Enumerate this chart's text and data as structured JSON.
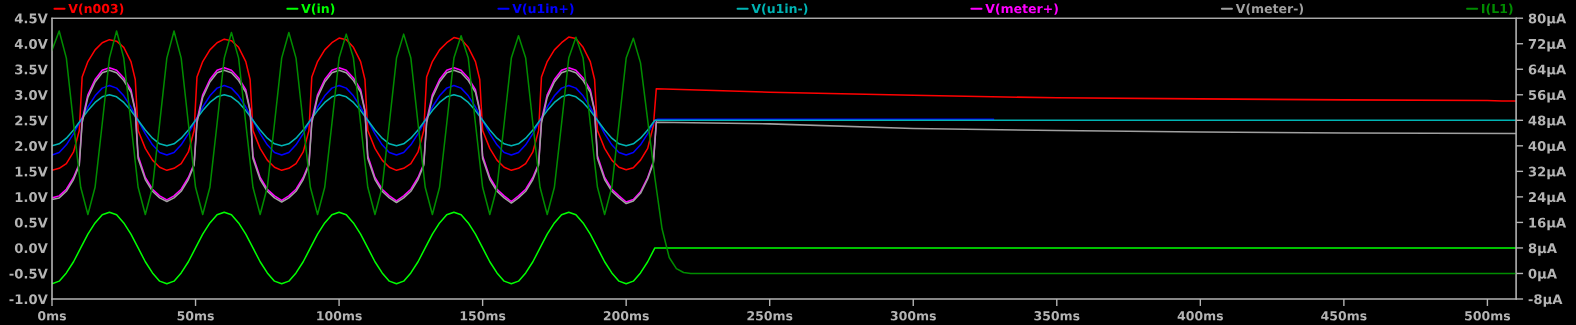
{
  "chart_data": {
    "type": "line",
    "legend": "top",
    "xlim": [
      0,
      510
    ],
    "xticks": [
      {
        "value": 0,
        "label": "0ms"
      },
      {
        "value": 50,
        "label": "50ms"
      },
      {
        "value": 100,
        "label": "100ms"
      },
      {
        "value": 150,
        "label": "150ms"
      },
      {
        "value": 200,
        "label": "200ms"
      },
      {
        "value": 250,
        "label": "250ms"
      },
      {
        "value": 300,
        "label": "300ms"
      },
      {
        "value": 350,
        "label": "350ms"
      },
      {
        "value": 400,
        "label": "400ms"
      },
      {
        "value": 450,
        "label": "450ms"
      },
      {
        "value": 500,
        "label": "500ms"
      }
    ],
    "ylim": [
      -1.0,
      4.5
    ],
    "yticks": [
      {
        "value": -1.0,
        "label": "-1.0V"
      },
      {
        "value": -0.5,
        "label": "-0.5V"
      },
      {
        "value": 0,
        "label": "0.0V"
      },
      {
        "value": 0.5,
        "label": "0.5V"
      },
      {
        "value": 1.0,
        "label": "1.0V"
      },
      {
        "value": 1.5,
        "label": "1.5V"
      },
      {
        "value": 2.0,
        "label": "2.0V"
      },
      {
        "value": 2.5,
        "label": "2.5V"
      },
      {
        "value": 3.0,
        "label": "3.0V"
      },
      {
        "value": 3.5,
        "label": "3.5V"
      },
      {
        "value": 4.0,
        "label": "4.0V"
      },
      {
        "value": 4.5,
        "label": "4.5V"
      }
    ],
    "y2lim": [
      -8,
      80
    ],
    "y2ticks": [
      {
        "value": -8,
        "label": "-8µA"
      },
      {
        "value": 0,
        "label": "0µA"
      },
      {
        "value": 8,
        "label": "8µA"
      },
      {
        "value": 16,
        "label": "16µA"
      },
      {
        "value": 24,
        "label": "24µA"
      },
      {
        "value": 32,
        "label": "32µA"
      },
      {
        "value": 40,
        "label": "40µA"
      },
      {
        "value": 48,
        "label": "48µA"
      },
      {
        "value": 56,
        "label": "56µA"
      },
      {
        "value": 64,
        "label": "64µA"
      },
      {
        "value": 72,
        "label": "72µA"
      },
      {
        "value": 80,
        "label": "80µA"
      }
    ],
    "series": [
      {
        "name": "V(n003)",
        "color": "#ff0000",
        "x": [
          0,
          2.5,
          5,
          7.5,
          9.5,
          10.5,
          12.5,
          15,
          17.5,
          20,
          22.5,
          25,
          27.5,
          29,
          30,
          32.5,
          35,
          37.5,
          40,
          42.5,
          45,
          47.5,
          49.5,
          50.5,
          52.5,
          55,
          57.5,
          60,
          62.5,
          65,
          67.5,
          69,
          70,
          72.5,
          75,
          77.5,
          80,
          82.5,
          85,
          87.5,
          89.5,
          90.5,
          92.5,
          95,
          97.5,
          100,
          102.5,
          105,
          107.5,
          109,
          110,
          112.5,
          115,
          117.5,
          120,
          122.5,
          125,
          127.5,
          129.5,
          130.5,
          132.5,
          135,
          137.5,
          140,
          142.5,
          145,
          147.5,
          149,
          150,
          152.5,
          155,
          157.5,
          160,
          162.5,
          165,
          167.5,
          169.5,
          170.5,
          172.5,
          175,
          177.5,
          180,
          182.5,
          185,
          187.5,
          189,
          190,
          192.5,
          195,
          197.5,
          200,
          202.5,
          205,
          207.5,
          209.5,
          210.5,
          250,
          300,
          350,
          400,
          450,
          500,
          505,
          510
        ],
        "values": [
          1.52,
          1.56,
          1.65,
          1.88,
          2.3,
          3.35,
          3.65,
          3.88,
          4.02,
          4.08,
          4.05,
          3.93,
          3.65,
          3.3,
          2.3,
          1.95,
          1.72,
          1.58,
          1.52,
          1.56,
          1.65,
          1.88,
          2.3,
          3.35,
          3.65,
          3.88,
          4.02,
          4.09,
          4.06,
          3.93,
          3.65,
          3.3,
          2.3,
          1.95,
          1.72,
          1.58,
          1.52,
          1.56,
          1.65,
          1.88,
          2.3,
          3.35,
          3.65,
          3.88,
          4.02,
          4.11,
          4.08,
          3.93,
          3.65,
          3.3,
          2.3,
          1.95,
          1.72,
          1.58,
          1.52,
          1.56,
          1.65,
          1.88,
          2.3,
          3.35,
          3.65,
          3.88,
          4.02,
          4.12,
          4.09,
          3.93,
          3.65,
          3.3,
          2.3,
          1.95,
          1.72,
          1.58,
          1.52,
          1.56,
          1.65,
          1.88,
          2.3,
          3.35,
          3.65,
          3.88,
          4.02,
          4.13,
          4.1,
          3.93,
          3.65,
          3.3,
          2.3,
          1.95,
          1.72,
          1.58,
          1.53,
          1.57,
          1.72,
          1.95,
          2.4,
          3.12,
          3.05,
          2.99,
          2.94,
          2.92,
          2.9,
          2.89,
          2.88,
          2.88
        ]
      },
      {
        "name": "V(in)",
        "color": "#00ff00",
        "x": [
          0,
          2.5,
          5,
          7.5,
          10,
          12.5,
          15,
          17.5,
          20,
          22.5,
          25,
          27.5,
          30,
          32.5,
          35,
          37.5,
          40,
          42.5,
          45,
          47.5,
          50,
          52.5,
          55,
          57.5,
          60,
          62.5,
          65,
          67.5,
          70,
          72.5,
          75,
          77.5,
          80,
          82.5,
          85,
          87.5,
          90,
          92.5,
          95,
          97.5,
          100,
          102.5,
          105,
          107.5,
          110,
          112.5,
          115,
          117.5,
          120,
          122.5,
          125,
          127.5,
          130,
          132.5,
          135,
          137.5,
          140,
          142.5,
          145,
          147.5,
          150,
          152.5,
          155,
          157.5,
          160,
          162.5,
          165,
          167.5,
          170,
          172.5,
          175,
          177.5,
          180,
          182.5,
          185,
          187.5,
          190,
          192.5,
          195,
          197.5,
          200,
          202.5,
          205,
          207.5,
          210,
          510
        ],
        "values": [
          -0.7,
          -0.65,
          -0.49,
          -0.27,
          0,
          0.27,
          0.49,
          0.65,
          0.7,
          0.65,
          0.49,
          0.27,
          0,
          -0.27,
          -0.49,
          -0.65,
          -0.7,
          -0.65,
          -0.49,
          -0.27,
          0,
          0.27,
          0.49,
          0.65,
          0.7,
          0.65,
          0.49,
          0.27,
          0,
          -0.27,
          -0.49,
          -0.65,
          -0.7,
          -0.65,
          -0.49,
          -0.27,
          0,
          0.27,
          0.49,
          0.65,
          0.7,
          0.65,
          0.49,
          0.27,
          0,
          -0.27,
          -0.49,
          -0.65,
          -0.7,
          -0.65,
          -0.49,
          -0.27,
          0,
          0.27,
          0.49,
          0.65,
          0.7,
          0.65,
          0.49,
          0.27,
          0,
          -0.27,
          -0.49,
          -0.65,
          -0.7,
          -0.65,
          -0.49,
          -0.27,
          0,
          0.27,
          0.49,
          0.65,
          0.7,
          0.65,
          0.49,
          0.27,
          0,
          -0.27,
          -0.49,
          -0.65,
          -0.7,
          -0.65,
          -0.49,
          -0.27,
          0,
          0
        ]
      },
      {
        "name": "V(u1in+)",
        "color": "#0000ff",
        "x": [
          0,
          2.5,
          5,
          7.5,
          10,
          12.5,
          15,
          17.5,
          20,
          22.5,
          25,
          27.5,
          30,
          32.5,
          35,
          37.5,
          40,
          42.5,
          45,
          47.5,
          50,
          52.5,
          55,
          57.5,
          60,
          62.5,
          65,
          67.5,
          70,
          72.5,
          75,
          77.5,
          80,
          82.5,
          85,
          87.5,
          90,
          92.5,
          95,
          97.5,
          100,
          102.5,
          105,
          107.5,
          110,
          112.5,
          115,
          117.5,
          120,
          122.5,
          125,
          127.5,
          130,
          132.5,
          135,
          137.5,
          140,
          142.5,
          145,
          147.5,
          150,
          152.5,
          155,
          157.5,
          160,
          162.5,
          165,
          167.5,
          170,
          172.5,
          175,
          177.5,
          180,
          182.5,
          185,
          187.5,
          190,
          192.5,
          195,
          197.5,
          200,
          202.5,
          205,
          207.5,
          210,
          211,
          328
        ],
        "values": [
          1.82,
          1.87,
          2.02,
          2.24,
          2.5,
          2.76,
          2.98,
          3.13,
          3.18,
          3.13,
          2.98,
          2.76,
          2.5,
          2.24,
          2.02,
          1.87,
          1.82,
          1.87,
          2.02,
          2.24,
          2.5,
          2.76,
          2.98,
          3.13,
          3.18,
          3.13,
          2.98,
          2.76,
          2.5,
          2.24,
          2.02,
          1.87,
          1.82,
          1.87,
          2.02,
          2.24,
          2.5,
          2.76,
          2.98,
          3.13,
          3.18,
          3.13,
          2.98,
          2.76,
          2.5,
          2.24,
          2.02,
          1.87,
          1.82,
          1.87,
          2.02,
          2.24,
          2.5,
          2.76,
          2.98,
          3.13,
          3.18,
          3.13,
          2.98,
          2.76,
          2.5,
          2.24,
          2.02,
          1.87,
          1.82,
          1.87,
          2.02,
          2.24,
          2.5,
          2.76,
          2.98,
          3.13,
          3.18,
          3.13,
          2.98,
          2.76,
          2.5,
          2.24,
          2.02,
          1.87,
          1.82,
          1.87,
          2.02,
          2.24,
          2.5,
          2.52,
          2.52
        ]
      },
      {
        "name": "V(u1in-)",
        "color": "#00b4b4",
        "x": [
          0,
          2.5,
          5,
          7.5,
          10,
          12.5,
          15,
          17.5,
          20,
          22.5,
          25,
          27.5,
          30,
          32.5,
          35,
          37.5,
          40,
          42.5,
          45,
          47.5,
          50,
          52.5,
          55,
          57.5,
          60,
          62.5,
          65,
          67.5,
          70,
          72.5,
          75,
          77.5,
          80,
          82.5,
          85,
          87.5,
          90,
          92.5,
          95,
          97.5,
          100,
          102.5,
          105,
          107.5,
          110,
          112.5,
          115,
          117.5,
          120,
          122.5,
          125,
          127.5,
          130,
          132.5,
          135,
          137.5,
          140,
          142.5,
          145,
          147.5,
          150,
          152.5,
          155,
          157.5,
          160,
          162.5,
          165,
          167.5,
          170,
          172.5,
          175,
          177.5,
          180,
          182.5,
          185,
          187.5,
          190,
          192.5,
          195,
          197.5,
          200,
          202.5,
          205,
          207.5,
          210,
          510
        ],
        "values": [
          2.0,
          2.04,
          2.15,
          2.31,
          2.5,
          2.69,
          2.85,
          2.96,
          3.0,
          2.96,
          2.85,
          2.69,
          2.5,
          2.31,
          2.15,
          2.04,
          2.0,
          2.04,
          2.15,
          2.31,
          2.5,
          2.69,
          2.85,
          2.96,
          3.0,
          2.96,
          2.85,
          2.69,
          2.5,
          2.31,
          2.15,
          2.04,
          2.0,
          2.04,
          2.15,
          2.31,
          2.5,
          2.69,
          2.85,
          2.96,
          3.0,
          2.96,
          2.85,
          2.69,
          2.5,
          2.31,
          2.15,
          2.04,
          2.0,
          2.04,
          2.15,
          2.31,
          2.5,
          2.69,
          2.85,
          2.96,
          3.0,
          2.96,
          2.85,
          2.69,
          2.5,
          2.31,
          2.15,
          2.04,
          2.0,
          2.04,
          2.15,
          2.31,
          2.5,
          2.69,
          2.85,
          2.96,
          3.0,
          2.96,
          2.85,
          2.69,
          2.5,
          2.31,
          2.15,
          2.04,
          2.0,
          2.04,
          2.15,
          2.31,
          2.5,
          2.5
        ]
      },
      {
        "name": "V(meter+)",
        "color": "#ff00ff",
        "x": [
          0,
          2.5,
          5,
          7.5,
          9.5,
          10.5,
          12.5,
          15,
          17.5,
          20,
          22.5,
          25,
          27.5,
          29,
          30,
          32.5,
          35,
          37.5,
          40,
          42.5,
          45,
          47.5,
          49.5,
          50.5,
          52.5,
          55,
          57.5,
          60,
          62.5,
          65,
          67.5,
          69,
          70,
          72.5,
          75,
          77.5,
          80,
          82.5,
          85,
          87.5,
          89.5,
          90.5,
          92.5,
          95,
          97.5,
          100,
          102.5,
          105,
          107.5,
          109,
          110,
          112.5,
          115,
          117.5,
          120,
          122.5,
          125,
          127.5,
          129.5,
          130.5,
          132.5,
          135,
          137.5,
          140,
          142.5,
          145,
          147.5,
          149,
          150,
          152.5,
          155,
          157.5,
          160,
          162.5,
          165,
          167.5,
          169.5,
          170.5,
          172.5,
          175,
          177.5,
          180,
          182.5,
          185,
          187.5,
          189,
          190,
          192.5,
          195,
          197.5,
          200,
          202.5,
          205,
          207.5,
          209.5,
          210.5
        ],
        "values": [
          0.98,
          1.02,
          1.15,
          1.38,
          1.65,
          2.5,
          3.0,
          3.3,
          3.48,
          3.53,
          3.48,
          3.33,
          3.1,
          2.7,
          1.8,
          1.38,
          1.15,
          1.02,
          0.94,
          1.02,
          1.15,
          1.38,
          1.65,
          2.5,
          3.0,
          3.3,
          3.48,
          3.53,
          3.48,
          3.33,
          3.1,
          2.7,
          1.8,
          1.38,
          1.15,
          1.02,
          0.93,
          1.02,
          1.15,
          1.38,
          1.65,
          2.5,
          3.0,
          3.3,
          3.48,
          3.53,
          3.48,
          3.33,
          3.1,
          2.7,
          1.8,
          1.38,
          1.15,
          1.02,
          0.92,
          1.02,
          1.15,
          1.38,
          1.65,
          2.5,
          3.0,
          3.3,
          3.48,
          3.53,
          3.48,
          3.33,
          3.1,
          2.7,
          1.8,
          1.38,
          1.15,
          1.02,
          0.91,
          1.02,
          1.15,
          1.38,
          1.65,
          2.5,
          3.0,
          3.3,
          3.48,
          3.53,
          3.48,
          3.33,
          3.1,
          2.7,
          1.8,
          1.38,
          1.15,
          1.02,
          0.9,
          0.95,
          1.1,
          1.38,
          1.7,
          2.47
        ]
      },
      {
        "name": "V(meter-)",
        "color": "#a0a0a0",
        "x": [
          0,
          2.5,
          5,
          7.5,
          9.5,
          10.5,
          12.5,
          15,
          17.5,
          20,
          22.5,
          25,
          27.5,
          29,
          30,
          32.5,
          35,
          37.5,
          40,
          42.5,
          45,
          47.5,
          49.5,
          50.5,
          52.5,
          55,
          57.5,
          60,
          62.5,
          65,
          67.5,
          69,
          70,
          72.5,
          75,
          77.5,
          80,
          82.5,
          85,
          87.5,
          89.5,
          90.5,
          92.5,
          95,
          97.5,
          100,
          102.5,
          105,
          107.5,
          109,
          110,
          112.5,
          115,
          117.5,
          120,
          122.5,
          125,
          127.5,
          129.5,
          130.5,
          132.5,
          135,
          137.5,
          140,
          142.5,
          145,
          147.5,
          149,
          150,
          152.5,
          155,
          157.5,
          160,
          162.5,
          165,
          167.5,
          169.5,
          170.5,
          172.5,
          175,
          177.5,
          180,
          182.5,
          185,
          187.5,
          189,
          190,
          192.5,
          195,
          197.5,
          200,
          202.5,
          205,
          207.5,
          209.5,
          210.5,
          250,
          300,
          350,
          400,
          450,
          510
        ],
        "values": [
          0.95,
          0.98,
          1.11,
          1.34,
          1.62,
          2.45,
          2.95,
          3.25,
          3.43,
          3.48,
          3.43,
          3.28,
          3.05,
          2.68,
          1.75,
          1.34,
          1.11,
          0.98,
          0.91,
          0.98,
          1.11,
          1.34,
          1.62,
          2.45,
          2.95,
          3.25,
          3.43,
          3.48,
          3.43,
          3.28,
          3.05,
          2.68,
          1.75,
          1.34,
          1.11,
          0.98,
          0.9,
          0.98,
          1.11,
          1.34,
          1.62,
          2.45,
          2.95,
          3.25,
          3.43,
          3.48,
          3.43,
          3.28,
          3.05,
          2.68,
          1.75,
          1.34,
          1.11,
          0.98,
          0.89,
          0.98,
          1.11,
          1.34,
          1.62,
          2.45,
          2.95,
          3.25,
          3.43,
          3.48,
          3.43,
          3.28,
          3.05,
          2.68,
          1.75,
          1.34,
          1.11,
          0.98,
          0.88,
          0.98,
          1.11,
          1.34,
          1.62,
          2.45,
          2.95,
          3.25,
          3.43,
          3.48,
          3.43,
          3.28,
          3.05,
          2.68,
          1.75,
          1.34,
          1.11,
          0.98,
          0.87,
          0.92,
          1.07,
          1.35,
          1.67,
          2.46,
          2.43,
          2.34,
          2.3,
          2.27,
          2.25,
          2.24
        ]
      },
      {
        "name": "I(L1)",
        "color": "#008c00",
        "axis": "y2",
        "x": [
          0,
          2.5,
          5,
          7.5,
          10,
          12.5,
          15,
          17.5,
          20,
          22.5,
          25,
          27.5,
          30,
          32.5,
          35,
          37.5,
          40,
          42.5,
          45,
          47.5,
          50,
          52.5,
          55,
          57.5,
          60,
          62.5,
          65,
          67.5,
          70,
          72.5,
          75,
          77.5,
          80,
          82.5,
          85,
          87.5,
          90,
          92.5,
          95,
          97.5,
          100,
          102.5,
          105,
          107.5,
          110,
          112.5,
          115,
          117.5,
          120,
          122.5,
          125,
          127.5,
          130,
          132.5,
          135,
          137.5,
          140,
          142.5,
          145,
          147.5,
          150,
          152.5,
          155,
          157.5,
          160,
          162.5,
          165,
          167.5,
          170,
          172.5,
          175,
          177.5,
          180,
          182.5,
          185,
          187.5,
          190,
          192.5,
          195,
          197.5,
          200,
          202.5,
          205,
          207.5,
          210,
          212.5,
          215,
          217.5,
          220,
          222.5,
          225,
          510
        ],
        "values": [
          70,
          76,
          67.5,
          47,
          27,
          18.5,
          27,
          47,
          67.5,
          76,
          67.5,
          47,
          27,
          18.5,
          27,
          47,
          67.5,
          76,
          67.5,
          47,
          27,
          18.5,
          27,
          47,
          67.5,
          75.5,
          67.5,
          47,
          27,
          18.5,
          27,
          47,
          67.5,
          75.5,
          67.5,
          47,
          27,
          18.5,
          27,
          47,
          67.5,
          75,
          67.5,
          47,
          27,
          18.5,
          27,
          47,
          67.5,
          75,
          67.5,
          47,
          27,
          18.5,
          27,
          47,
          67.5,
          74.5,
          67.5,
          47,
          27,
          18.5,
          27,
          47,
          67.5,
          74.5,
          67.5,
          47,
          27,
          18.5,
          27,
          47,
          67.5,
          74,
          67.5,
          47,
          27,
          18.5,
          27,
          47,
          67.5,
          73.7,
          66,
          48,
          30,
          14,
          5,
          1.5,
          0.3,
          0,
          0,
          0
        ]
      }
    ]
  }
}
